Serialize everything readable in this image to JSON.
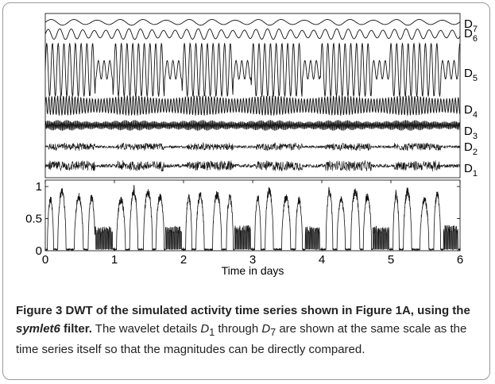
{
  "chart_data": {
    "type": "line",
    "panels": {
      "details": {
        "series": [
          {
            "name": "D7",
            "label_main": "D",
            "label_sub": "7",
            "amplitude": 0.05,
            "period_days": 0.333,
            "kind": "smooth"
          },
          {
            "name": "D6",
            "label_main": "D",
            "label_sub": "6",
            "amplitude": 0.09,
            "period_days": 0.167,
            "kind": "smooth"
          },
          {
            "name": "D5",
            "label_main": "D",
            "label_sub": "5",
            "amplitude": 0.45,
            "period_days": 0.083,
            "kind": "bursts"
          },
          {
            "name": "D4",
            "label_main": "D",
            "label_sub": "4",
            "amplitude": 0.17,
            "period_days": 0.042,
            "kind": "smooth"
          },
          {
            "name": "D3",
            "label_main": "D",
            "label_sub": "3",
            "amplitude": 0.09,
            "period_days": 0.021,
            "kind": "smooth"
          },
          {
            "name": "D2",
            "label_main": "D",
            "label_sub": "2",
            "amplitude": 0.06,
            "period_days": 0.01,
            "kind": "noise"
          },
          {
            "name": "D1",
            "label_main": "D",
            "label_sub": "1",
            "amplitude": 0.08,
            "period_days": 0.005,
            "kind": "noise"
          }
        ]
      },
      "signal": {
        "x_label": "Time in days",
        "xlim": [
          0,
          6
        ],
        "ylim": [
          0,
          1.1
        ],
        "x_ticks": [
          "0",
          "1",
          "2",
          "3",
          "4",
          "5",
          "6"
        ],
        "y_ticks": [
          "0",
          "0.5",
          "1"
        ],
        "days": [
          {
            "day": 0,
            "bursts": [
              {
                "start": 0.03,
                "end": 0.12,
                "level": 0.85
              },
              {
                "start": 0.18,
                "end": 0.3,
                "level": 1.0
              },
              {
                "start": 0.42,
                "end": 0.55,
                "level": 0.9
              },
              {
                "start": 0.62,
                "end": 0.72,
                "level": 0.9
              }
            ],
            "low_activity": {
              "start": 0.72,
              "end": 0.97,
              "level": 0.38
            }
          },
          {
            "day": 1,
            "bursts": [
              {
                "start": 0.03,
                "end": 0.16,
                "level": 0.85
              },
              {
                "start": 0.22,
                "end": 0.34,
                "level": 1.02
              },
              {
                "start": 0.42,
                "end": 0.55,
                "level": 1.0
              },
              {
                "start": 0.6,
                "end": 0.72,
                "level": 0.9
              }
            ],
            "low_activity": {
              "start": 0.74,
              "end": 0.97,
              "level": 0.38
            }
          },
          {
            "day": 2,
            "bursts": [
              {
                "start": 0.03,
                "end": 0.12,
                "level": 0.9
              },
              {
                "start": 0.18,
                "end": 0.3,
                "level": 0.92
              },
              {
                "start": 0.42,
                "end": 0.55,
                "level": 0.95
              },
              {
                "start": 0.62,
                "end": 0.72,
                "level": 0.9
              }
            ],
            "low_activity": {
              "start": 0.74,
              "end": 0.97,
              "level": 0.4
            }
          },
          {
            "day": 3,
            "bursts": [
              {
                "start": 0.03,
                "end": 0.12,
                "level": 0.9
              },
              {
                "start": 0.18,
                "end": 0.3,
                "level": 1.02
              },
              {
                "start": 0.42,
                "end": 0.55,
                "level": 0.9
              },
              {
                "start": 0.62,
                "end": 0.72,
                "level": 0.85
              }
            ],
            "low_activity": {
              "start": 0.76,
              "end": 0.97,
              "level": 0.38
            }
          },
          {
            "day": 4,
            "bursts": [
              {
                "start": 0.06,
                "end": 0.16,
                "level": 1.0
              },
              {
                "start": 0.22,
                "end": 0.34,
                "level": 0.85
              },
              {
                "start": 0.42,
                "end": 0.55,
                "level": 1.0
              },
              {
                "start": 0.6,
                "end": 0.72,
                "level": 0.92
              }
            ],
            "low_activity": {
              "start": 0.74,
              "end": 0.97,
              "level": 0.38
            }
          },
          {
            "day": 5,
            "bursts": [
              {
                "start": 0.03,
                "end": 0.12,
                "level": 0.95
              },
              {
                "start": 0.18,
                "end": 0.3,
                "level": 1.0
              },
              {
                "start": 0.42,
                "end": 0.55,
                "level": 0.85
              },
              {
                "start": 0.62,
                "end": 0.72,
                "level": 0.95
              }
            ],
            "low_activity": {
              "start": 0.76,
              "end": 0.97,
              "level": 0.4
            }
          }
        ]
      }
    }
  },
  "caption": {
    "label": "Figure 3",
    "title_pre": "DWT of the simulated activity time series shown in Figure 1A, using the ",
    "title_filter": "symlet6",
    "title_post": " filter.",
    "body_1": " The wavelet details ",
    "body_d1_main": "D",
    "body_d1_sub": "1",
    "body_2": " through ",
    "body_d7_main": "D",
    "body_d7_sub": "7",
    "body_3": " are shown at the same scale as the time series itself so that the magnitudes can be directly compared."
  }
}
